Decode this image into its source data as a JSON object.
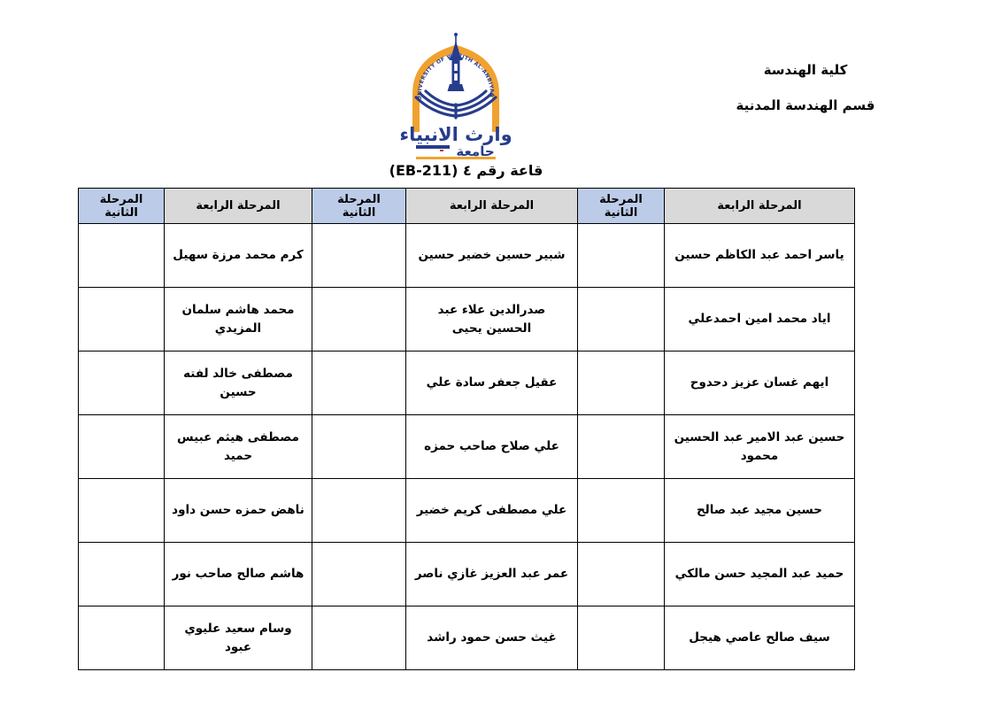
{
  "header": {
    "college": "كلية الهندسة",
    "department": "قسم الهندسة المدنية"
  },
  "title": "قاعة رقم ٤ (EB-211)",
  "logo": {
    "arc_text": "UNIVERSITY OF WARITH AL-ANBIYAA",
    "calligraphy": "وارث الانبياء",
    "word_university": "جامعة",
    "colors": {
      "blue": "#263c8d",
      "orange": "#f0a230",
      "red": "#c03a2b"
    }
  },
  "table": {
    "stage2_label": "المرحلة الثانية",
    "stage4_label": "المرحلة الرابعة",
    "stage2_bg": "#bccce8",
    "stage4_bg": "#d9d9d9",
    "columns_rtl": [
      {
        "kind": "stage4",
        "header": "المرحلة الرابعة",
        "names": [
          "ياسر احمد عبد الكاظم حسين",
          "اياد محمد امين احمدعلي",
          "ايهم غسان عزيز دحدوح",
          "حسين عبد الامير عبد الحسين محمود",
          "حسين مجيد عبد صالح",
          "حميد عبد المجيد حسن مالكي",
          "سيف صالح عاصي هيجل"
        ]
      },
      {
        "kind": "stage2",
        "header": "المرحلة الثانية",
        "names": [
          "",
          "",
          "",
          "",
          "",
          "",
          ""
        ]
      },
      {
        "kind": "stage4",
        "header": "المرحلة الرابعة",
        "names": [
          "شبير حسين خضير حسين",
          "صدرالدين علاء عبد الحسين يحيى",
          "عقيل جعفر سادة علي",
          "علي صلاح صاحب حمزه",
          "علي مصطفى كريم خضير",
          "عمر عبد العزيز غازي ناصر",
          "غيث حسن حمود راشد"
        ]
      },
      {
        "kind": "stage2",
        "header": "المرحلة الثانية",
        "names": [
          "",
          "",
          "",
          "",
          "",
          "",
          ""
        ]
      },
      {
        "kind": "stage4",
        "header": "المرحلة الرابعة",
        "names": [
          "كرم محمد مرزة سهيل",
          "محمد هاشم سلمان المزيدي",
          "مصطفى خالد لفته حسين",
          "مصطفى هيثم عبيس حميد",
          "ناهض حمزه حسن داود",
          "هاشم صالح صاحب نور",
          "وسام سعيد عليوي عبود"
        ]
      },
      {
        "kind": "stage2",
        "header": "المرحلة الثانية",
        "names": [
          "",
          "",
          "",
          "",
          "",
          "",
          ""
        ]
      }
    ]
  }
}
